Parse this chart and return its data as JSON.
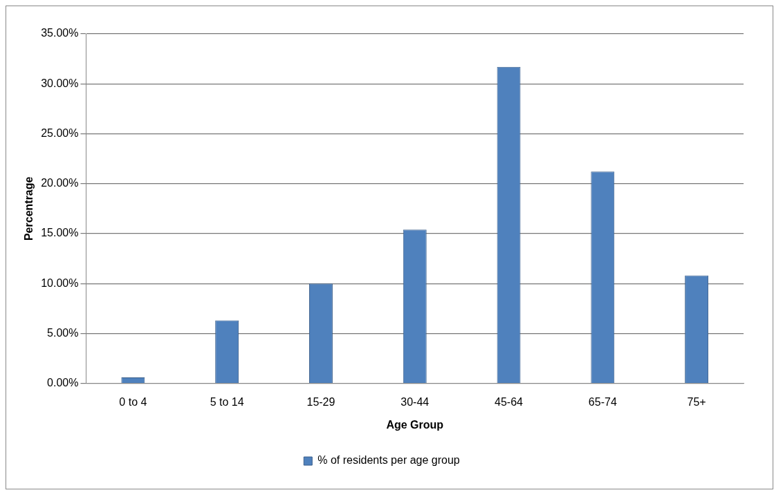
{
  "chart_data": {
    "type": "bar",
    "xlabel": "Age Group",
    "ylabel": "Percentrage",
    "categories": [
      "0 to 4",
      "5 to 14",
      "15-29",
      "30-44",
      "45-64",
      "65-74",
      "75+"
    ],
    "series": [
      {
        "name": "% of residents per age group",
        "color": "#4f81bd",
        "values": [
          0.6,
          6.3,
          10,
          15.4,
          31.7,
          21.2,
          10.8
        ]
      }
    ],
    "ylim": [
      0,
      35
    ],
    "yticks": [
      {
        "value": 0,
        "label": "0.00%"
      },
      {
        "value": 5,
        "label": "5.00%"
      },
      {
        "value": 10,
        "label": "10.00%"
      },
      {
        "value": 15,
        "label": "15.00%"
      },
      {
        "value": 20,
        "label": "20.00%"
      },
      {
        "value": 25,
        "label": "25.00%"
      },
      {
        "value": 30,
        "label": "30.00%"
      },
      {
        "value": 35,
        "label": "35.00%"
      }
    ],
    "grid": "y",
    "legend": "bottom"
  }
}
